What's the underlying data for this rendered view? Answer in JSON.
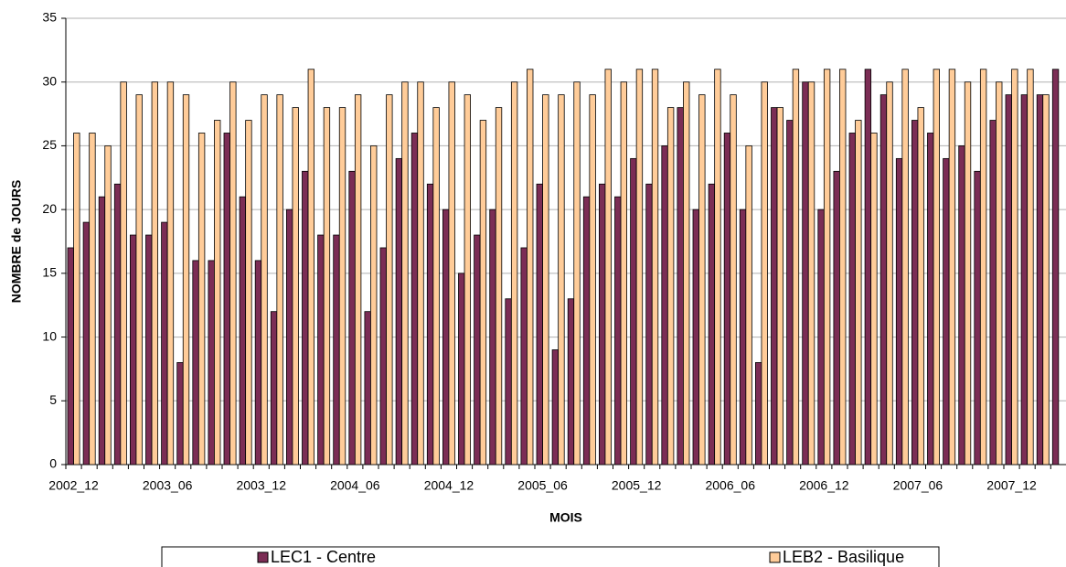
{
  "chart_data": {
    "type": "bar",
    "x_label": "MOIS",
    "y_label": "NOMBRE de JOURS",
    "categories": [
      "2002_12",
      null,
      null,
      null,
      null,
      null,
      "2003_06",
      null,
      null,
      null,
      null,
      null,
      "2003_12",
      null,
      null,
      null,
      null,
      null,
      "2004_06",
      null,
      null,
      null,
      null,
      null,
      "2004_12",
      null,
      null,
      null,
      null,
      null,
      "2005_06",
      null,
      null,
      null,
      null,
      null,
      "2005_12",
      null,
      null,
      null,
      null,
      null,
      "2006_06",
      null,
      null,
      null,
      null,
      null,
      "2006_12",
      null,
      null,
      null,
      null,
      null,
      "2007_06",
      null,
      null,
      null,
      null,
      null,
      "2007_12",
      null,
      null,
      null
    ],
    "series": [
      {
        "name": "LEC1 - Centre",
        "color": "#7b2d55",
        "values": [
          17,
          19,
          21,
          22,
          18,
          18,
          19,
          8,
          16,
          16,
          26,
          21,
          16,
          12,
          20,
          23,
          18,
          18,
          23,
          12,
          17,
          24,
          26,
          22,
          20,
          15,
          18,
          20,
          13,
          17,
          22,
          9,
          13,
          21,
          22,
          21,
          24,
          22,
          25,
          28,
          20,
          22,
          26,
          20,
          8,
          28,
          27,
          30,
          20,
          23,
          26,
          31,
          29,
          24,
          27,
          26,
          24,
          25,
          23,
          27,
          29,
          29,
          29,
          31
        ]
      },
      {
        "name": "LEB2 - Basilique",
        "color": "#ffcc99",
        "values": [
          26,
          26,
          25,
          30,
          29,
          30,
          30,
          29,
          26,
          27,
          30,
          27,
          29,
          29,
          28,
          31,
          28,
          28,
          29,
          25,
          29,
          30,
          30,
          28,
          30,
          29,
          27,
          28,
          30,
          31,
          29,
          29,
          30,
          29,
          31,
          30,
          31,
          31,
          28,
          30,
          29,
          31,
          29,
          25,
          30,
          28,
          31,
          30,
          31,
          31,
          27,
          26,
          30,
          31,
          28,
          31,
          31,
          30,
          31,
          30,
          31,
          31,
          29,
          null
        ]
      }
    ],
    "ylim": [
      0,
      35
    ],
    "yticks": [
      0,
      5,
      10,
      15,
      20,
      25,
      30,
      35
    ],
    "grid": true,
    "legend": "bottom"
  }
}
